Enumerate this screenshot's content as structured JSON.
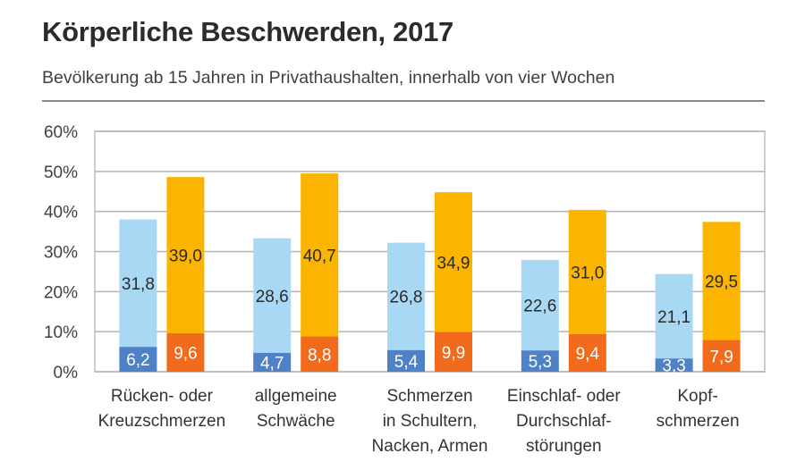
{
  "chart_data": {
    "type": "bar",
    "title": "Körperliche Beschwerden, 2017",
    "subtitle": "Bevölkerung ab 15 Jahren in Privathaushalten, innerhalb von vier Wochen",
    "xlabel": "",
    "ylabel": "",
    "ylim": [
      0,
      60
    ],
    "yticks": [
      "0%",
      "10%",
      "20%",
      "30%",
      "40%",
      "50%",
      "60%"
    ],
    "grid": true,
    "legend": "none",
    "stacked": true,
    "categories": [
      [
        "Rücken- oder",
        "Kreuzschmerzen"
      ],
      [
        "allgemeine",
        "Schwäche"
      ],
      [
        "Schmerzen",
        "in Schultern,",
        "Nacken, Armen"
      ],
      [
        "Einschlaf- oder",
        "Durchschlaf-",
        "störungen"
      ],
      [
        "Kopf-",
        "schmerzen"
      ]
    ],
    "groups": [
      {
        "series": [
          {
            "values": [
              6.2,
              4.7,
              5.4,
              5.3,
              3.3
            ],
            "labels": [
              "6,2",
              "4,7",
              "5,4",
              "5,3",
              "3,3"
            ],
            "color": "#4f81c7"
          },
          {
            "values": [
              31.8,
              28.6,
              26.8,
              22.6,
              21.1
            ],
            "labels": [
              "31,8",
              "28,6",
              "26,8",
              "22,6",
              "21,1"
            ],
            "color": "#a9d8f5"
          }
        ]
      },
      {
        "series": [
          {
            "values": [
              9.6,
              8.8,
              9.9,
              9.4,
              7.9
            ],
            "labels": [
              "9,6",
              "8,8",
              "9,9",
              "9,4",
              "7,9"
            ],
            "color": "#f26a1b"
          },
          {
            "values": [
              39.0,
              40.7,
              34.9,
              31.0,
              29.5
            ],
            "labels": [
              "39,0",
              "40,7",
              "34,9",
              "31,0",
              "29,5"
            ],
            "color": "#fbb400"
          }
        ]
      }
    ]
  }
}
